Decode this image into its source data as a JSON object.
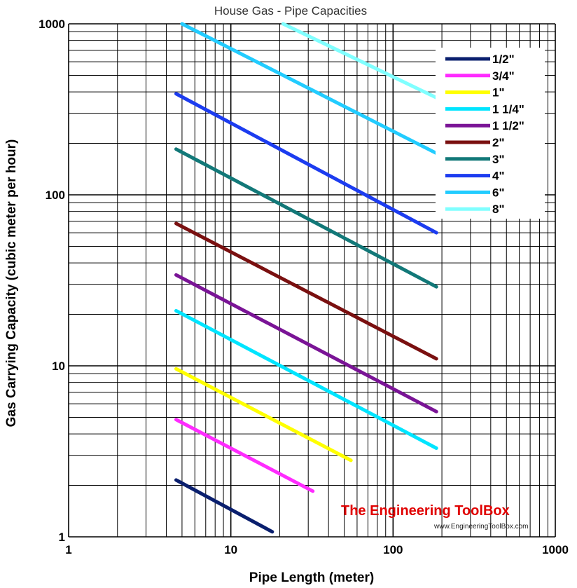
{
  "chart_data": {
    "type": "line",
    "title": "House Gas - Pipe Capacities",
    "xlabel": "Pipe Length (meter)",
    "ylabel": "Gas Carrying Capacity (cubic meter per hour)",
    "xscale": "log",
    "yscale": "log",
    "xlim": [
      1,
      1000
    ],
    "ylim": [
      1,
      1000
    ],
    "xticks": [
      {
        "value": 1,
        "label": "1"
      },
      {
        "value": 10,
        "label": "10"
      },
      {
        "value": 100,
        "label": "100"
      },
      {
        "value": 1000,
        "label": "1000"
      }
    ],
    "yticks": [
      {
        "value": 1,
        "label": "1"
      },
      {
        "value": 10,
        "label": "10"
      },
      {
        "value": 100,
        "label": "100"
      },
      {
        "value": 1000,
        "label": "1000"
      }
    ],
    "grid": true,
    "legend_position": "top-right",
    "series": [
      {
        "name": "1/2\"",
        "color": "#0a1f6e",
        "points": [
          [
            4.6,
            2.15
          ],
          [
            18,
            1.07
          ]
        ]
      },
      {
        "name": "3/4\"",
        "color": "#ff2bff",
        "points": [
          [
            4.6,
            4.85
          ],
          [
            32,
            1.85
          ]
        ]
      },
      {
        "name": "1\"",
        "color": "#ffff00",
        "points": [
          [
            4.6,
            9.6
          ],
          [
            55,
            2.8
          ]
        ]
      },
      {
        "name": "1 1/4\"",
        "color": "#00e5ff",
        "points": [
          [
            4.6,
            21
          ],
          [
            185,
            3.3
          ]
        ]
      },
      {
        "name": "1 1/2\"",
        "color": "#7a1496",
        "points": [
          [
            4.6,
            34
          ],
          [
            185,
            5.4
          ]
        ]
      },
      {
        "name": "2\"",
        "color": "#7a1010",
        "points": [
          [
            4.6,
            68
          ],
          [
            185,
            11
          ]
        ]
      },
      {
        "name": "3\"",
        "color": "#127878",
        "points": [
          [
            4.6,
            185
          ],
          [
            185,
            29
          ]
        ]
      },
      {
        "name": "4\"",
        "color": "#1c3cf0",
        "points": [
          [
            4.6,
            390
          ],
          [
            185,
            60
          ]
        ]
      },
      {
        "name": "6\"",
        "color": "#22ccff",
        "points": [
          [
            5,
            1000
          ],
          [
            185,
            175
          ]
        ]
      },
      {
        "name": "8\"",
        "color": "#80ffff",
        "points": [
          [
            21,
            1000
          ],
          [
            185,
            370
          ]
        ]
      }
    ]
  },
  "watermark": {
    "title": "The Engineering ToolBox",
    "url": "www.EngineeringToolBox.com"
  }
}
